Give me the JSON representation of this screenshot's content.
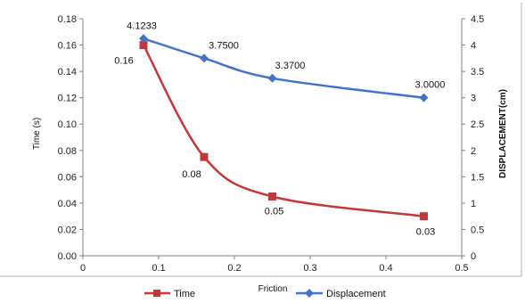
{
  "chart_data": {
    "type": "line",
    "xlabel": "Friction",
    "ylabel_left": "Time (s)",
    "ylabel_right": "DISPLACEMENT(cm)",
    "xlim": [
      0,
      0.5
    ],
    "ylim_left": [
      0,
      0.18
    ],
    "ylim_right": [
      0,
      4.5
    ],
    "grid": false,
    "legend_position": "bottom",
    "x_ticks": [
      "0",
      "0.1",
      "0.2",
      "0.3",
      "0.4",
      "0.5"
    ],
    "y_left_ticks": [
      "0.00",
      "0.02",
      "0.04",
      "0.06",
      "0.08",
      "0.10",
      "0.12",
      "0.14",
      "0.16",
      "0.18"
    ],
    "y_right_ticks": [
      "0",
      "0.5",
      "1",
      "1.5",
      "2",
      "2.5",
      "3",
      "3.5",
      "4",
      "4.5"
    ],
    "series": [
      {
        "name": "Time",
        "axis": "left",
        "color": "#c0393b",
        "marker": "square",
        "x": [
          0.08,
          0.16,
          0.25,
          0.45
        ],
        "y": [
          0.16,
          0.075,
          0.045,
          0.03
        ],
        "labels": [
          "0.16",
          "0.08",
          "0.05",
          "0.03"
        ]
      },
      {
        "name": "Displacement",
        "axis": "right",
        "color": "#4472c4",
        "marker": "diamond",
        "x": [
          0.08,
          0.16,
          0.25,
          0.45
        ],
        "y": [
          4.1233,
          3.75,
          3.37,
          3.0
        ],
        "labels": [
          "4.1233",
          "3.7500",
          "3.3700",
          "3.0000"
        ]
      }
    ]
  }
}
